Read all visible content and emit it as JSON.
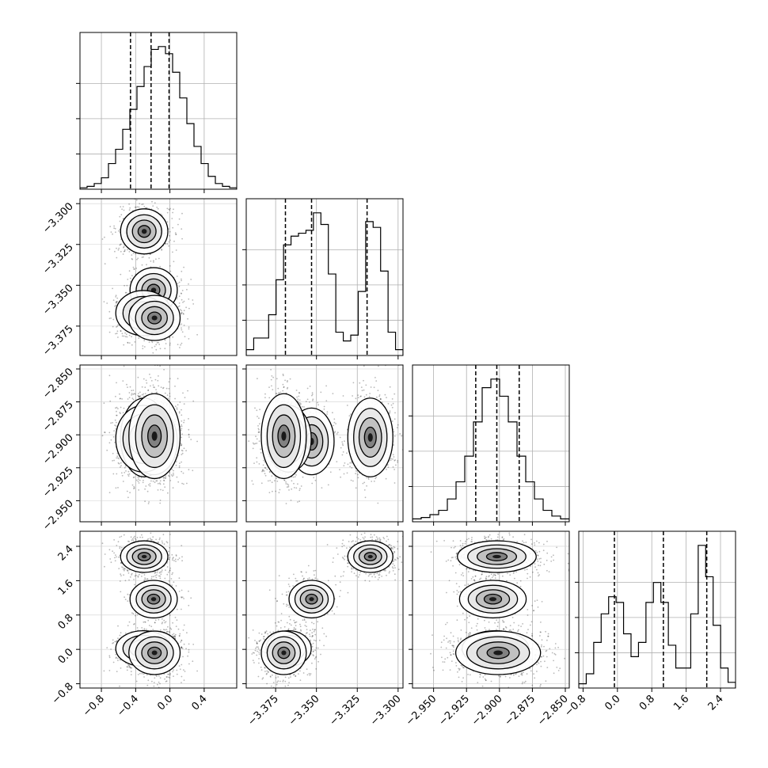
{
  "chart_data": {
    "type": "corner",
    "title": "",
    "grid": true,
    "panel_order": [
      "p0",
      "p1",
      "p2",
      "p3"
    ],
    "params": [
      {
        "id": "p0",
        "label": "",
        "range": [
          -1.05,
          0.78
        ],
        "ticks": [
          -0.8,
          -0.4,
          0.0,
          0.4
        ],
        "tick_labels": [
          "−0.8",
          "−0.4",
          "0.0",
          "0.4"
        ],
        "quantiles": [
          -0.46,
          -0.22,
          -0.01
        ]
      },
      {
        "id": "p1",
        "label": "",
        "range": [
          -3.393,
          -3.297
        ],
        "ticks": [
          -3.375,
          -3.35,
          -3.325,
          -3.3
        ],
        "tick_labels": [
          "−3.375",
          "−3.350",
          "−3.325",
          "−3.300"
        ],
        "quantiles": [
          -3.369,
          -3.353,
          -3.319
        ]
      },
      {
        "id": "p2",
        "label": "",
        "range": [
          -2.966,
          -2.847
        ],
        "ticks": [
          -2.95,
          -2.925,
          -2.9,
          -2.875,
          -2.85
        ],
        "tick_labels": [
          "−2.950",
          "−2.925",
          "−2.900",
          "−2.875",
          "−2.850"
        ],
        "quantiles": [
          -2.918,
          -2.902,
          -2.885
        ]
      },
      {
        "id": "p3",
        "label": "",
        "range": [
          -0.9,
          2.75
        ],
        "ticks": [
          -0.8,
          0.0,
          0.8,
          1.6,
          2.4
        ],
        "tick_labels": [
          "−0.8",
          "0.0",
          "0.8",
          "1.6",
          "2.4"
        ],
        "quantiles": [
          -0.07,
          1.07,
          2.08
        ]
      }
    ],
    "histograms": [
      {
        "param": "p0",
        "counts": [
          1,
          2,
          4,
          8,
          18,
          28,
          42,
          56,
          72,
          86,
          98,
          100,
          95,
          82,
          64,
          46,
          30,
          18,
          9,
          4,
          2,
          1
        ]
      },
      {
        "param": "p1",
        "counts": [
          4,
          12,
          12,
          28,
          52,
          76,
          82,
          84,
          86,
          98,
          90,
          56,
          16,
          10,
          14,
          44,
          92,
          88,
          58,
          16,
          4
        ]
      },
      {
        "param": "p2",
        "counts": [
          2,
          3,
          5,
          8,
          16,
          28,
          46,
          70,
          94,
          100,
          88,
          70,
          46,
          28,
          16,
          8,
          4,
          2
        ]
      },
      {
        "param": "p3",
        "counts": [
          3,
          10,
          32,
          52,
          64,
          60,
          38,
          22,
          32,
          60,
          74,
          60,
          30,
          14,
          14,
          52,
          100,
          78,
          44,
          14,
          4
        ]
      }
    ],
    "modes": [
      {
        "weight": 0.33,
        "mean": [
          -0.3,
          -3.317,
          -2.902,
          2.16
        ],
        "sd": [
          0.12,
          0.006,
          0.013,
          0.16
        ]
      },
      {
        "weight": 0.17,
        "mean": [
          -0.19,
          -3.353,
          -2.905,
          1.17
        ],
        "sd": [
          0.12,
          0.006,
          0.011,
          0.19
        ]
      },
      {
        "weight": 0.17,
        "mean": [
          -0.31,
          -3.367,
          -2.903,
          0.02
        ],
        "sd": [
          0.14,
          0.006,
          0.011,
          0.18
        ]
      },
      {
        "weight": 0.33,
        "mean": [
          -0.18,
          -3.37,
          -2.901,
          -0.08
        ],
        "sd": [
          0.13,
          0.006,
          0.014,
          0.22
        ]
      }
    ]
  }
}
